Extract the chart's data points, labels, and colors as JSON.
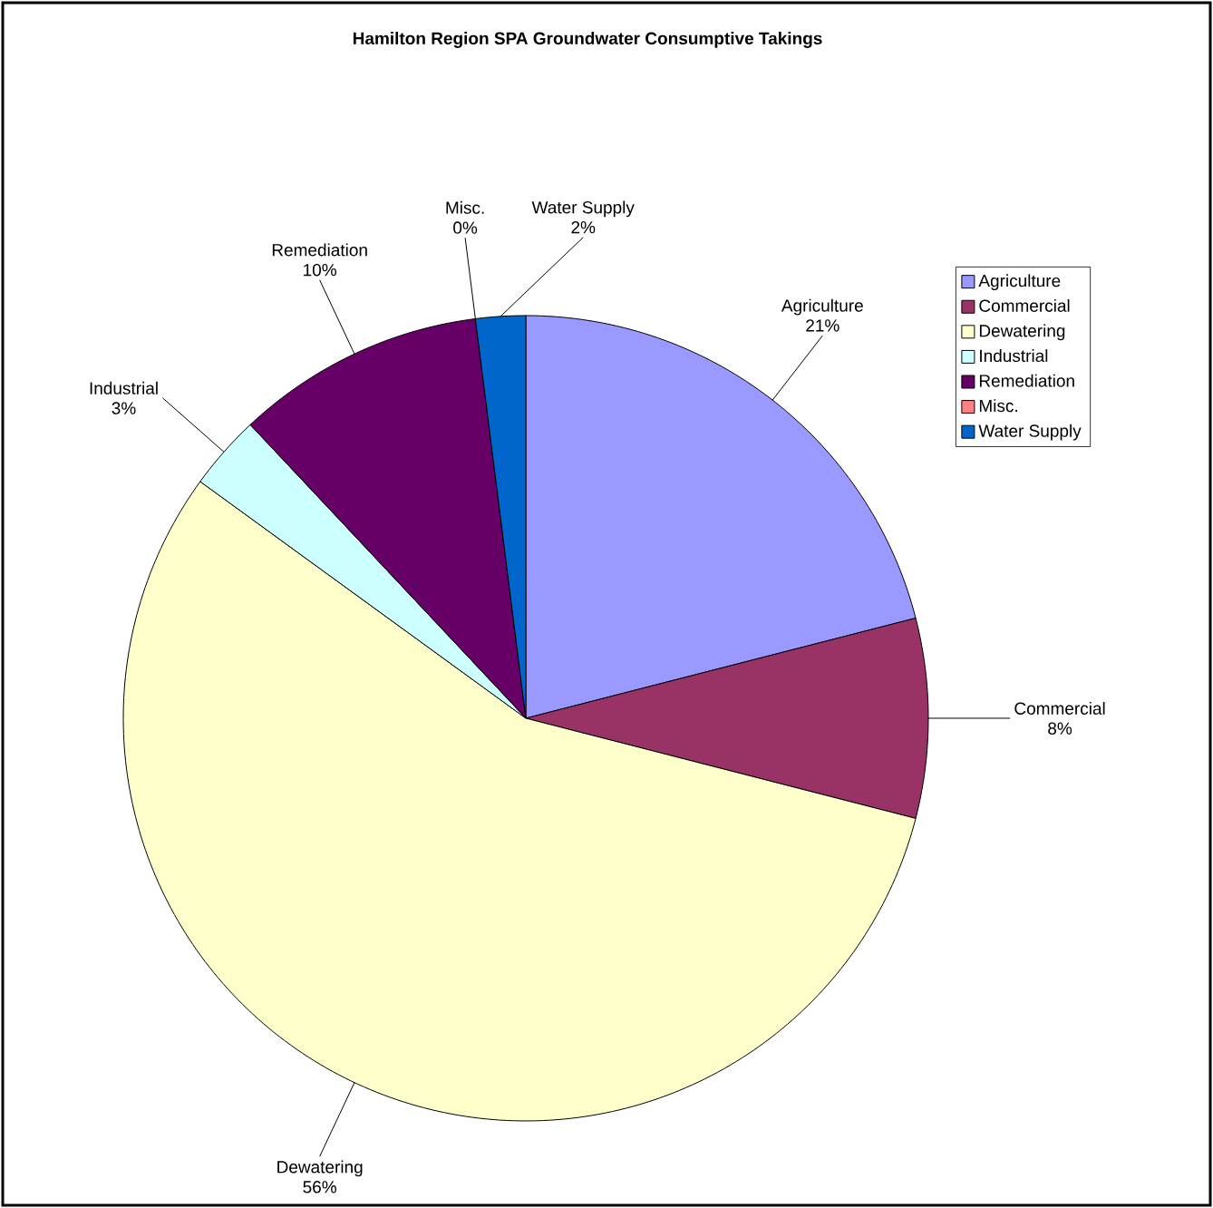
{
  "chart_data": {
    "type": "pie",
    "title": "Hamilton Region SPA Groundwater Consumptive Takings",
    "categories": [
      "Agriculture",
      "Commercial",
      "Dewatering",
      "Industrial",
      "Remediation",
      "Misc.",
      "Water Supply"
    ],
    "values": [
      21,
      8,
      56,
      3,
      10,
      0,
      2
    ],
    "value_labels": [
      "21%",
      "8%",
      "56%",
      "3%",
      "10%",
      "0%",
      "2%"
    ],
    "colors": [
      "#9999ff",
      "#993366",
      "#ffffcc",
      "#ccffff",
      "#660066",
      "#ff8080",
      "#0066cc"
    ],
    "legend": "right"
  }
}
